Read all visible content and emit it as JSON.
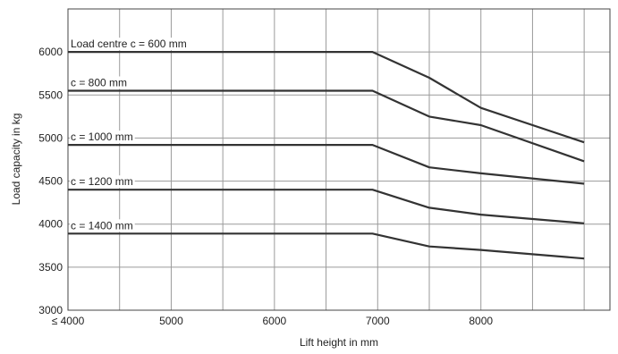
{
  "chart_data": {
    "type": "line",
    "xlabel": "Lift height in mm",
    "ylabel": "Load capacity in kg",
    "xlim": [
      3500,
      8750
    ],
    "ylim": [
      3000,
      6500
    ],
    "xticks": [
      {
        "value": 3500,
        "label": "≤ 4000"
      },
      {
        "value": 4500,
        "label": "5000"
      },
      {
        "value": 5500,
        "label": "6000"
      },
      {
        "value": 6500,
        "label": "7000"
      },
      {
        "value": 7500,
        "label": "8000"
      }
    ],
    "xgrid": [
      3500,
      4000,
      4500,
      5000,
      5500,
      6000,
      6500,
      7000,
      7500,
      8000,
      8500
    ],
    "yticks": [
      {
        "value": 3000,
        "label": "3000"
      },
      {
        "value": 3500,
        "label": "3500"
      },
      {
        "value": 4000,
        "label": "4000"
      },
      {
        "value": 4500,
        "label": "4500"
      },
      {
        "value": 5000,
        "label": "5000"
      },
      {
        "value": 5500,
        "label": "5500"
      },
      {
        "value": 6000,
        "label": "6000"
      }
    ],
    "grid": true,
    "series": [
      {
        "name": "Load centre c = 600 mm",
        "points": [
          [
            3500,
            6000
          ],
          [
            6450,
            6000
          ],
          [
            7000,
            5700
          ],
          [
            7500,
            5350
          ],
          [
            8500,
            4950
          ]
        ]
      },
      {
        "name": "c = 800 mm",
        "points": [
          [
            3500,
            5550
          ],
          [
            6450,
            5550
          ],
          [
            7000,
            5250
          ],
          [
            7500,
            5150
          ],
          [
            8500,
            4730
          ]
        ]
      },
      {
        "name": "c = 1000 mm",
        "points": [
          [
            3500,
            4920
          ],
          [
            6450,
            4920
          ],
          [
            7000,
            4660
          ],
          [
            7500,
            4590
          ],
          [
            8500,
            4470
          ]
        ]
      },
      {
        "name": "c = 1200 mm",
        "points": [
          [
            3500,
            4400
          ],
          [
            6450,
            4400
          ],
          [
            7000,
            4190
          ],
          [
            7500,
            4110
          ],
          [
            8500,
            4010
          ]
        ]
      },
      {
        "name": "c = 1400 mm",
        "points": [
          [
            3500,
            3890
          ],
          [
            6450,
            3890
          ],
          [
            7000,
            3740
          ],
          [
            7500,
            3700
          ],
          [
            8500,
            3600
          ]
        ]
      }
    ]
  }
}
